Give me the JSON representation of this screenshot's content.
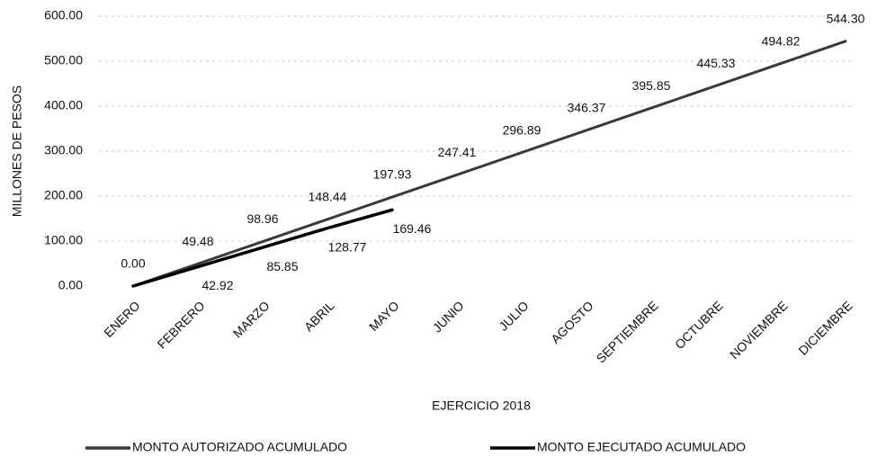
{
  "chart_data": {
    "type": "line",
    "categories": [
      "ENERO",
      "FEBRERO",
      "MARZO",
      "ABRIL",
      "MAYO",
      "JUNIO",
      "JULIO",
      "AGOSTO",
      "SEPTIEMBRE",
      "OCTUBRE",
      "NOVIEMBRE",
      "DICIEMBRE"
    ],
    "series": [
      {
        "name": "MONTO AUTORIZADO ACUMULADO",
        "color": "#3a3a3a",
        "values": [
          0,
          49.48,
          98.96,
          148.44,
          197.93,
          247.41,
          296.89,
          346.37,
          395.85,
          445.33,
          494.82,
          544.3
        ],
        "value_labels": [
          "0.00",
          "49.48",
          "98.96",
          "148.44",
          "197.93",
          "247.41",
          "296.89",
          "346.37",
          "395.85",
          "445.33",
          "494.82",
          "544.30"
        ]
      },
      {
        "name": "MONTO EJECUTADO ACUMULADO",
        "color": "#000000",
        "values": [
          0,
          42.92,
          85.85,
          128.77,
          169.46,
          null,
          null,
          null,
          null,
          null,
          null,
          null
        ],
        "value_labels": [
          null,
          "42.92",
          "85.85",
          "128.77",
          "169.46",
          null,
          null,
          null,
          null,
          null,
          null,
          null
        ]
      }
    ],
    "ylim": [
      0,
      600
    ],
    "yticks": [
      {
        "value": 0,
        "label": "0.00"
      },
      {
        "value": 100,
        "label": "100.00"
      },
      {
        "value": 200,
        "label": "200.00"
      },
      {
        "value": 300,
        "label": "300.00"
      },
      {
        "value": 400,
        "label": "400.00"
      },
      {
        "value": 500,
        "label": "500.00"
      },
      {
        "value": 600,
        "label": "600.00"
      }
    ],
    "y_label": "MILLONES DE PESOS",
    "x_label": "EJERCICIO 2018",
    "grid": true
  }
}
